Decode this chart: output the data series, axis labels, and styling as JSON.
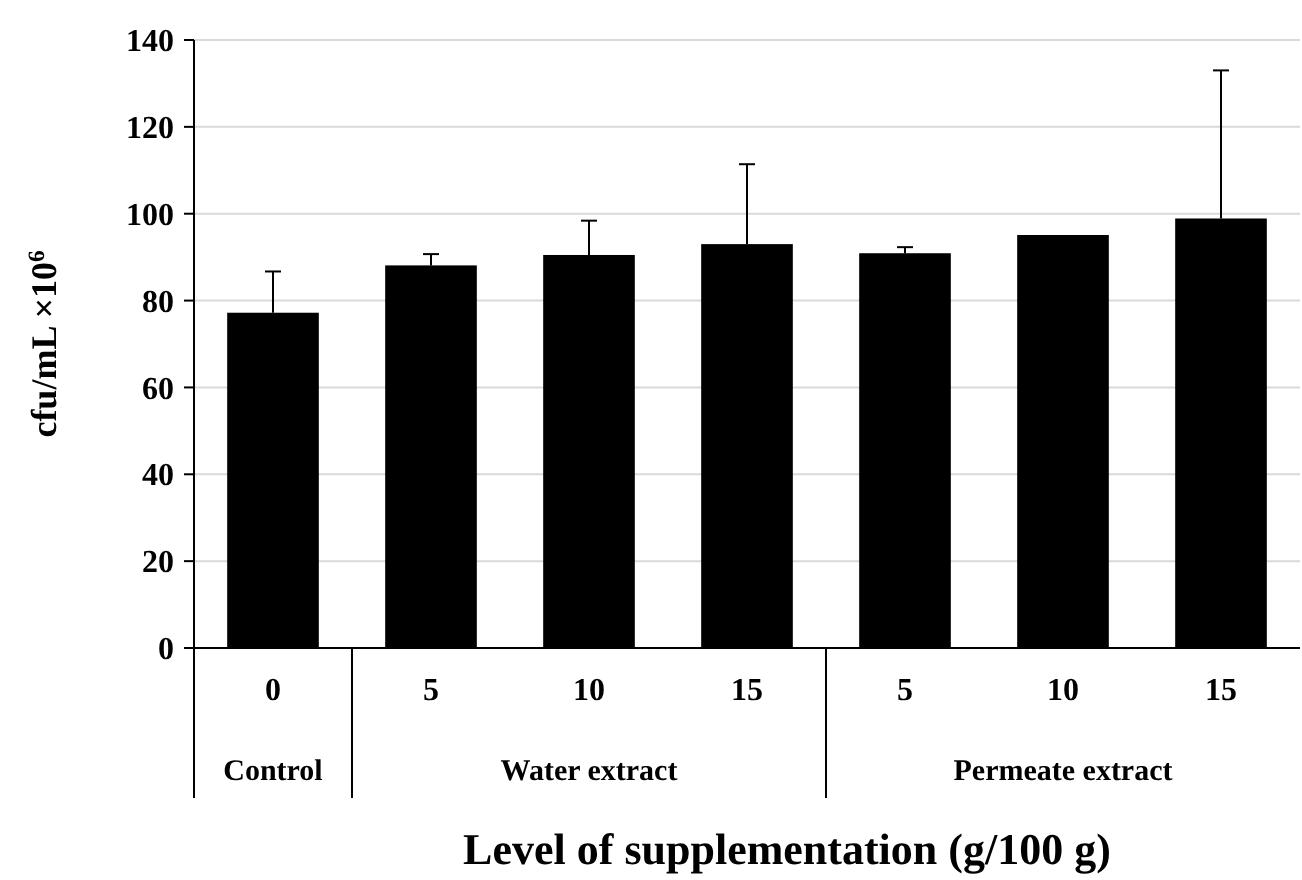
{
  "chart_data": {
    "type": "bar",
    "ylabel": "cfu/mL ×10$^{6}$",
    "xlabel": "Level of supplementation  (g/100 g)",
    "categories": [
      "0",
      "5",
      "10",
      "15",
      "5",
      "10",
      "15"
    ],
    "values": [
      77.2,
      88.1,
      90.5,
      93.0,
      90.9,
      95.1,
      98.9
    ],
    "errors": [
      [
        77.2,
        86.7
      ],
      [
        88.1,
        90.7
      ],
      [
        90.5,
        98.4
      ],
      [
        93.0,
        111.4
      ],
      [
        90.9,
        92.3
      ],
      null,
      [
        98.9,
        133
      ]
    ],
    "color": "#000000",
    "ylim": [
      0,
      140
    ],
    "yticks": [
      0,
      20,
      40,
      60,
      80,
      100,
      120,
      140
    ],
    "grid": "y",
    "annotations": [
      "Control",
      "Water extract",
      "Permeate extract"
    ]
  }
}
